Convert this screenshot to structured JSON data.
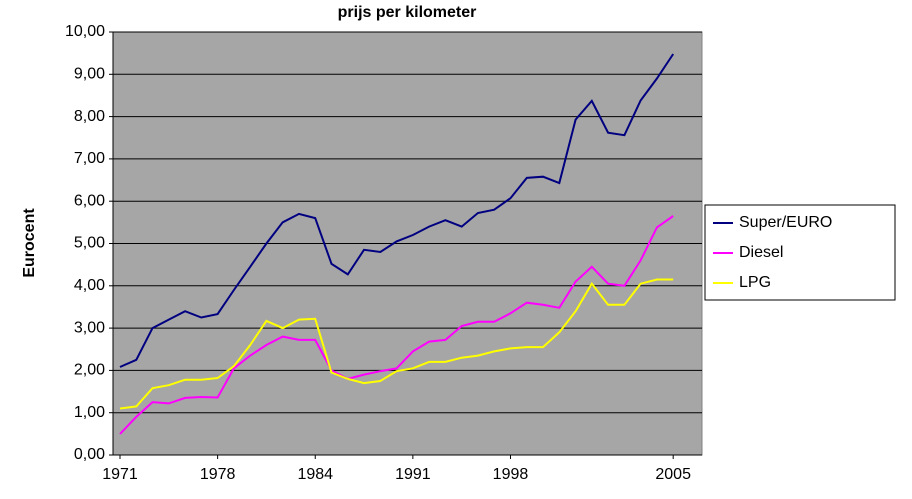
{
  "chart_data": {
    "type": "line",
    "title": "prijs per kilometer",
    "y_label": "Eurocent",
    "categories": [
      "1971",
      null,
      null,
      null,
      null,
      null,
      "1978",
      null,
      null,
      null,
      null,
      null,
      "1984",
      null,
      null,
      null,
      null,
      null,
      "1991",
      null,
      null,
      null,
      null,
      null,
      "1998",
      null,
      null,
      null,
      null,
      null,
      null,
      null,
      null,
      null,
      "2005"
    ],
    "series": [
      {
        "name": "Super/EURO",
        "color": "#000080",
        "values": [
          2.08,
          2.25,
          3.0,
          3.2,
          3.4,
          3.25,
          3.33,
          3.9,
          4.45,
          5.0,
          5.5,
          5.7,
          5.6,
          4.52,
          4.27,
          4.85,
          4.8,
          5.05,
          5.2,
          5.4,
          5.55,
          5.4,
          5.72,
          5.8,
          6.07,
          6.55,
          6.58,
          6.43,
          7.93,
          8.37,
          7.62,
          7.56,
          8.38,
          8.9,
          9.48
        ]
      },
      {
        "name": "Diesel",
        "color": "#ff00ff",
        "values": [
          0.5,
          0.9,
          1.25,
          1.22,
          1.35,
          1.37,
          1.36,
          2.05,
          2.35,
          2.6,
          2.8,
          2.72,
          2.72,
          2.0,
          1.8,
          1.9,
          1.98,
          2.05,
          2.45,
          2.68,
          2.72,
          3.05,
          3.15,
          3.15,
          3.35,
          3.6,
          3.55,
          3.48,
          4.1,
          4.45,
          4.05,
          4.0,
          4.6,
          5.38,
          5.65
        ]
      },
      {
        "name": "LPG",
        "color": "#ffff00",
        "values": [
          1.1,
          1.15,
          1.58,
          1.65,
          1.78,
          1.78,
          1.82,
          2.1,
          2.6,
          3.17,
          3.0,
          3.2,
          3.22,
          1.95,
          1.8,
          1.7,
          1.75,
          1.98,
          2.05,
          2.2,
          2.2,
          2.3,
          2.35,
          2.45,
          2.52,
          2.55,
          2.55,
          2.9,
          3.4,
          4.05,
          3.55,
          3.55,
          4.05,
          4.15,
          4.15
        ]
      }
    ],
    "ylim": [
      0,
      10
    ],
    "yticks": [
      {
        "value": 0,
        "label": "0,00"
      },
      {
        "value": 1,
        "label": "1,00"
      },
      {
        "value": 2,
        "label": "2,00"
      },
      {
        "value": 3,
        "label": "3,00"
      },
      {
        "value": 4,
        "label": "4,00"
      },
      {
        "value": 5,
        "label": "5,00"
      },
      {
        "value": 6,
        "label": "6,00"
      },
      {
        "value": 7,
        "label": "7,00"
      },
      {
        "value": 8,
        "label": "8,00"
      },
      {
        "value": 9,
        "label": "9,00"
      },
      {
        "value": 10,
        "label": "10,00"
      }
    ],
    "grid": true,
    "plot_background": "#a6a6a6",
    "legend": "right"
  }
}
